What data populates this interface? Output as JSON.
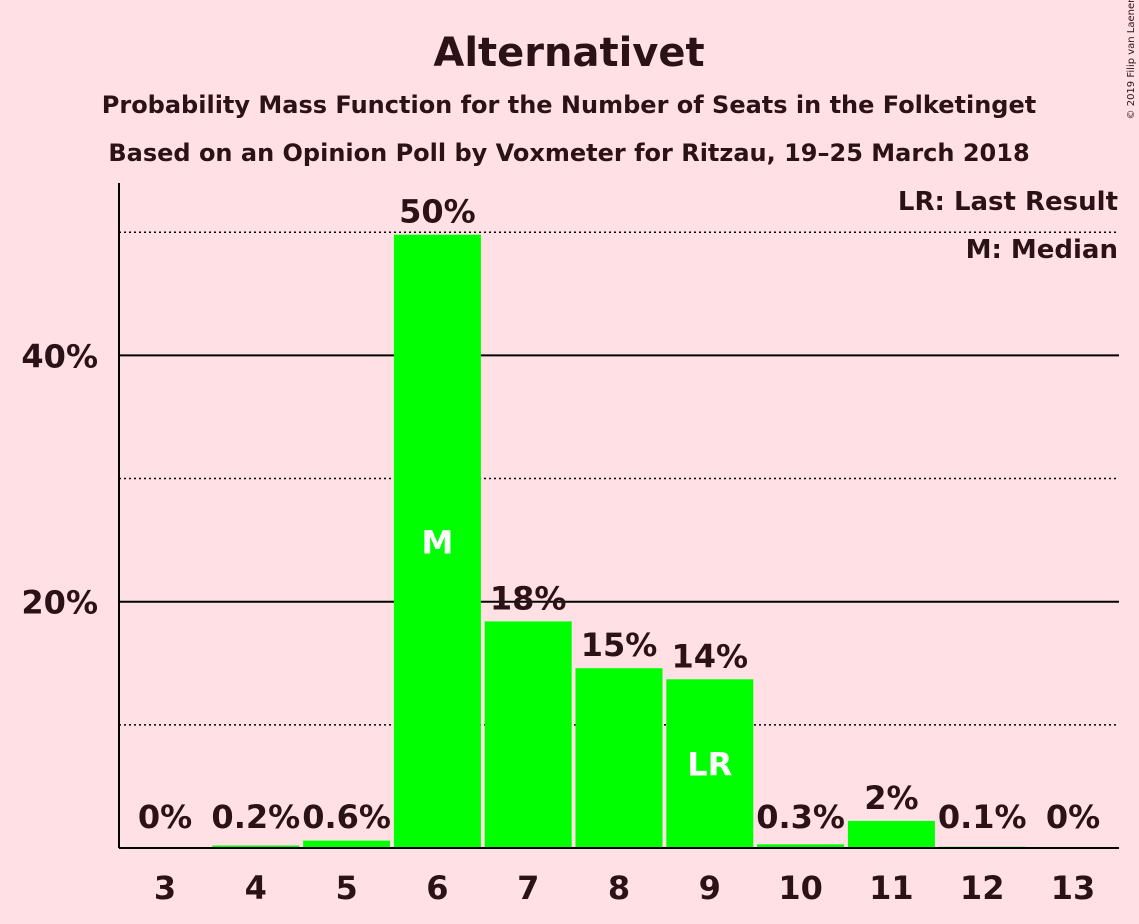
{
  "colors": {
    "background": "#FFE0E4",
    "bar": "#00FF00",
    "text": "#2B1216",
    "axis": "#000000",
    "marker_text": "#FFFFFF"
  },
  "chart_data": {
    "type": "bar",
    "title": "Alternativet",
    "subtitle_1": "Probability Mass Function for the Number of Seats in the Folketinget",
    "subtitle_2": "Based on an Opinion Poll by Voxmeter for Ritzau, 19–25 March 2018",
    "copyright": "© 2019 Filip van Laenen",
    "legend": [
      "LR: Last Result",
      "M: Median"
    ],
    "legend_position": "top-right",
    "categories": [
      "3",
      "4",
      "5",
      "6",
      "7",
      "8",
      "9",
      "10",
      "11",
      "12",
      "13"
    ],
    "values": [
      0,
      0.2,
      0.6,
      49.8,
      18.4,
      14.6,
      13.7,
      0.3,
      2.2,
      0.1,
      0
    ],
    "value_labels": [
      "0%",
      "0.2%",
      "0.6%",
      "50%",
      "18%",
      "15%",
      "14%",
      "0.3%",
      "2%",
      "0.1%",
      "0%"
    ],
    "bar_markers": [
      {
        "category": "6",
        "label": "M"
      },
      {
        "category": "9",
        "label": "LR"
      }
    ],
    "ylim": [
      0,
      54
    ],
    "yticks": [
      {
        "value": 20,
        "label": "20%"
      },
      {
        "value": 40,
        "label": "40%"
      }
    ],
    "minor_gridlines": [
      10,
      30,
      50
    ],
    "xlabel": "",
    "ylabel": ""
  }
}
